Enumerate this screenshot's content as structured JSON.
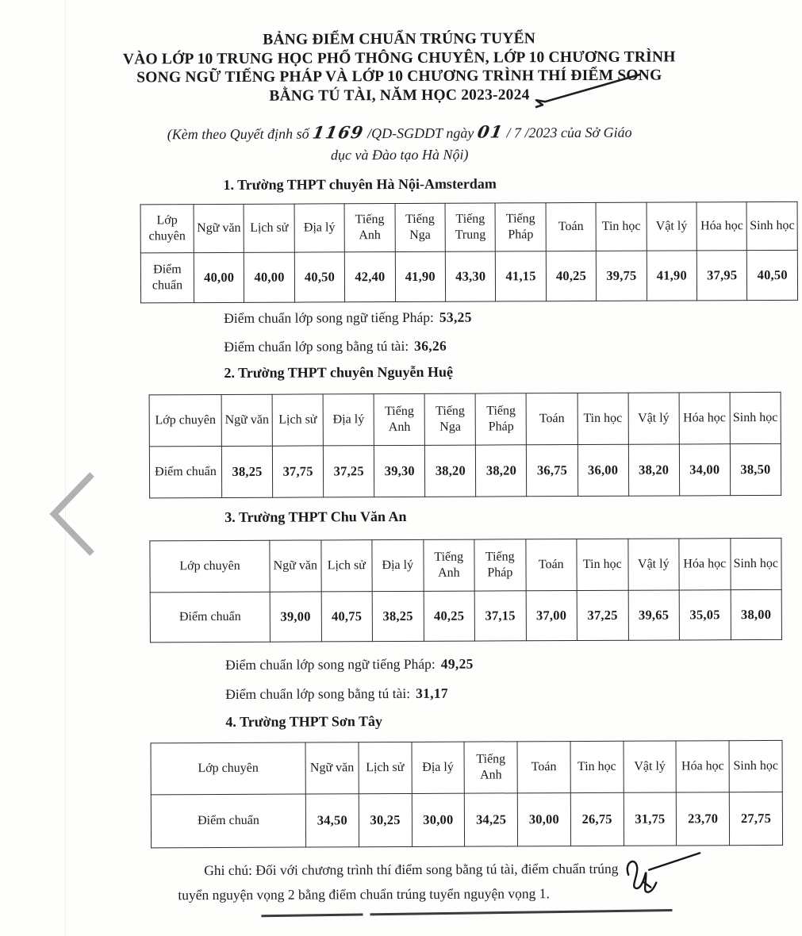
{
  "title": {
    "lines": [
      "BẢNG ĐIỂM CHUẨN TRÚNG TUYỂN",
      "VÀO LỚP 10 TRUNG HỌC PHỔ THÔNG CHUYÊN, LỚP 10 CHƯƠNG TRÌNH",
      "SONG NGỮ TIẾNG PHÁP VÀ LỚP 10 CHƯƠNG TRÌNH THÍ ĐIỂM SONG",
      "BẰNG TÚ TÀI, NĂM HỌC 2023-2024"
    ]
  },
  "decree": {
    "p1": "(Kèm theo Quyết định số",
    "number_handwritten": "1169",
    "p2": "/QD-SGDDT ngày",
    "day_handwritten": "01",
    "p3": "/ 7 /2023 của Sở Giáo",
    "line2": "dục và Đào tạo Hà Nội)"
  },
  "sections": [
    {
      "heading": "1. Trường THPT chuyên Hà Nội-Amsterdam",
      "table": {
        "corner_label": "Lớp chuyên",
        "row_label": "Điểm chuẩn",
        "columns": [
          "Ngữ văn",
          "Lịch sử",
          "Địa lý",
          "Tiếng Anh",
          "Tiếng Nga",
          "Tiếng Trung",
          "Tiếng Pháp",
          "Toán",
          "Tin học",
          "Vật lý",
          "Hóa học",
          "Sinh học"
        ],
        "values": [
          "40,00",
          "40,00",
          "40,50",
          "42,40",
          "41,90",
          "43,30",
          "41,15",
          "40,25",
          "39,75",
          "41,90",
          "37,95",
          "40,50"
        ]
      },
      "extra_lines": [
        {
          "label": "Điểm chuẩn lớp song ngữ tiếng Pháp:",
          "value": "53,25"
        },
        {
          "label": "Điểm chuẩn lớp song bằng tú tài:",
          "value": "36,26"
        }
      ]
    },
    {
      "heading": "2. Trường THPT chuyên Nguyễn Huệ",
      "table": {
        "corner_label": "Lớp chuyên",
        "row_label": "Điểm chuẩn",
        "columns": [
          "Ngữ văn",
          "Lịch sử",
          "Địa lý",
          "Tiếng Anh",
          "Tiếng Nga",
          "Tiếng Pháp",
          "Toán",
          "Tin học",
          "Vật lý",
          "Hóa học",
          "Sinh học"
        ],
        "values": [
          "38,25",
          "37,75",
          "37,25",
          "39,30",
          "38,20",
          "38,20",
          "36,75",
          "36,00",
          "38,20",
          "34,00",
          "38,50"
        ]
      },
      "extra_lines": []
    },
    {
      "heading": "3. Trường THPT Chu Văn An",
      "table": {
        "corner_label": "Lớp chuyên",
        "row_label": "Điểm chuẩn",
        "columns": [
          "Ngữ văn",
          "Lịch sử",
          "Địa lý",
          "Tiếng Anh",
          "Tiếng Pháp",
          "Toán",
          "Tin học",
          "Vật lý",
          "Hóa học",
          "Sinh học"
        ],
        "values": [
          "39,00",
          "40,75",
          "38,25",
          "40,25",
          "37,15",
          "37,00",
          "37,25",
          "39,65",
          "35,05",
          "38,00"
        ]
      },
      "extra_lines": [
        {
          "label": "Điểm chuẩn lớp song ngữ tiếng Pháp:",
          "value": "49,25"
        },
        {
          "label": "Điểm chuẩn lớp song bằng tú tài:",
          "value": "31,17"
        }
      ]
    },
    {
      "heading": "4. Trường THPT Sơn Tây",
      "table": {
        "corner_label": "Lớp chuyên",
        "row_label": "Điểm chuẩn",
        "columns": [
          "Ngữ văn",
          "Lịch sử",
          "Địa lý",
          "Tiếng Anh",
          "Toán",
          "Tin học",
          "Vật lý",
          "Hóa học",
          "Sinh học"
        ],
        "values": [
          "34,50",
          "30,25",
          "30,00",
          "34,25",
          "30,00",
          "26,75",
          "31,75",
          "23,70",
          "27,75"
        ]
      },
      "extra_lines": []
    }
  ],
  "note": {
    "line1": "Ghi chú: Đối với chương trình thí điểm song bằng tú tài, điểm chuẩn trúng",
    "line2": "tuyển nguyện vọng 2 bằng điểm chuẩn trúng tuyển nguyện vọng 1."
  },
  "icons": {
    "chevron_left": "previous-page chevron",
    "handwritten_tick": "handwritten check stroke",
    "handwritten_signature": "handwritten initials"
  },
  "colors": {
    "text": "#1c1c1c",
    "table_border": "#2c2c2c",
    "chevron_gray": "#b2b2b2",
    "paper": "#fefefd"
  }
}
